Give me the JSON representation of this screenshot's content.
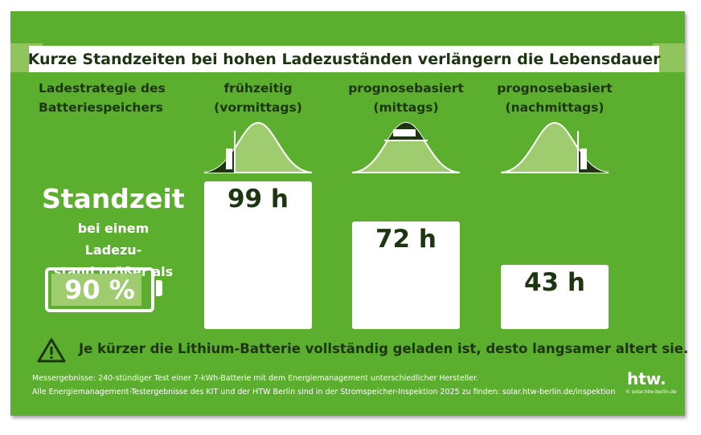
{
  "title": "Kurze Standzeiten bei hohen Ladezuständen verlängern die Lebensdauer",
  "row_header": [
    "Ladestrategie des",
    "Batteriespeichers"
  ],
  "side": {
    "heading": "Standzeit",
    "lines": [
      "bei einem Ladezu-",
      "stand größer als"
    ],
    "battery_label": "90 %"
  },
  "warning": "Je kürzer die Lithium-Batterie vollständig geladen ist, desto langsamer altert sie.",
  "footnotes": [
    "Messergebnisse: 240-stündiger Test einer 7-kWh-Batterie mit dem Energiemanagement unterschiedlicher Hersteller.",
    "Alle Energiemanagement-Testergebnisse des KIT und der HTW Berlin sind in der Stromspeicher-Inspektion 2025 zu finden: solar.htw-berlin.de/inspektion"
  ],
  "logo": {
    "text": "htw.",
    "credit": "© solar.htw-berlin.de"
  },
  "colors": {
    "background": "#5cae2e",
    "dark": "#1d3510",
    "light": "#9fcc6e",
    "bar": "#ffffff"
  },
  "chart_data": {
    "type": "bar",
    "categories": [
      [
        "frühzeitig",
        "(vormittags)"
      ],
      [
        "prognosebasiert",
        "(mittags)"
      ],
      [
        "prognosebasiert",
        "(nachmittags)"
      ]
    ],
    "values": [
      99,
      72,
      43
    ],
    "value_labels": [
      "99 h",
      "72 h",
      "43 h"
    ],
    "unit": "h",
    "ylim": [
      0,
      99
    ],
    "grid": false,
    "icons": [
      "solar-curve-morning-charge",
      "solar-curve-midday-charge",
      "solar-curve-afternoon-charge"
    ]
  }
}
